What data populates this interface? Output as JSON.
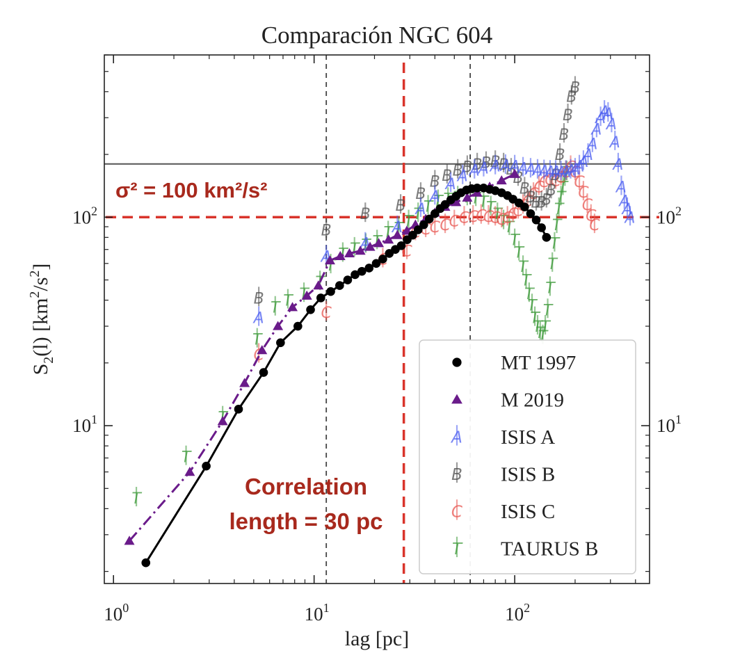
{
  "chart_data": {
    "type": "scatter",
    "title": "Comparación NGC 604",
    "xlabel": "lag [pc]",
    "ylabel_parts": [
      "S",
      "2",
      "(l) [km",
      "2",
      "/s",
      "2",
      "]"
    ],
    "xscale": "log",
    "yscale": "log",
    "xlim": [
      0.9,
      470
    ],
    "ylim": [
      1.75,
      600
    ],
    "x_ticks": [
      {
        "value": 1,
        "base": "10",
        "exp": "0"
      },
      {
        "value": 10,
        "base": "10",
        "exp": "1"
      },
      {
        "value": 100,
        "base": "10",
        "exp": "2"
      }
    ],
    "y_ticks": [
      {
        "value": 10,
        "base": "10",
        "exp": "1"
      },
      {
        "value": 100,
        "base": "10",
        "exp": "2"
      }
    ],
    "right_y_ticks": [
      {
        "value": 10,
        "base": "10",
        "exp": "1"
      },
      {
        "value": 100,
        "base": "10",
        "exp": "2"
      }
    ],
    "grid": false,
    "legend_position": "lower-right",
    "reference_lines": {
      "sigma_hline": {
        "y": 100,
        "label": "σ² = 100 km²/s²",
        "color": "#d9342b"
      },
      "gray_hline": {
        "y": 180,
        "color": "#555555"
      },
      "corr_vline": {
        "x": 28,
        "label_lines": [
          "Correlation",
          "length = 30 pc"
        ],
        "color": "#d9342b"
      },
      "gray_vlines": [
        11.5,
        60
      ]
    },
    "annotation_color": "#a8291d",
    "series": [
      {
        "name": "MT 1997",
        "color": "#000000",
        "marker": "circle",
        "line": "solid",
        "points": [
          [
            1.45,
            2.2
          ],
          [
            2.9,
            6.4
          ],
          [
            4.2,
            12
          ],
          [
            5.6,
            18
          ],
          [
            6.8,
            25
          ],
          [
            8.3,
            30
          ],
          [
            9.6,
            36
          ],
          [
            10.8,
            41
          ],
          [
            12.1,
            44
          ],
          [
            13.4,
            47
          ],
          [
            14.7,
            50
          ],
          [
            16.0,
            53
          ],
          [
            17.3,
            55
          ],
          [
            18.8,
            57
          ],
          [
            20.4,
            60
          ],
          [
            22.0,
            63
          ],
          [
            23.7,
            67
          ],
          [
            25.4,
            70
          ],
          [
            27.2,
            73
          ],
          [
            29.1,
            78
          ],
          [
            31,
            82
          ],
          [
            33,
            87
          ],
          [
            35.2,
            92
          ],
          [
            37.5,
            98
          ],
          [
            40,
            104
          ],
          [
            42.5,
            110
          ],
          [
            45,
            115
          ],
          [
            48,
            121
          ],
          [
            51,
            126
          ],
          [
            54,
            131
          ],
          [
            57.5,
            135
          ],
          [
            61,
            137
          ],
          [
            65,
            138
          ],
          [
            70,
            138
          ],
          [
            75,
            136
          ],
          [
            80,
            134
          ],
          [
            86,
            131
          ],
          [
            92,
            127
          ],
          [
            98,
            122
          ],
          [
            105,
            117
          ],
          [
            112,
            112
          ],
          [
            120,
            104
          ],
          [
            128,
            97
          ],
          [
            136,
            89
          ],
          [
            144,
            80
          ]
        ]
      },
      {
        "name": "M 2019",
        "color": "#6a1b8a",
        "marker": "triangle",
        "line": "dashdot",
        "points": [
          [
            1.2,
            2.8
          ],
          [
            2.4,
            6.0
          ],
          [
            3.5,
            10.5
          ],
          [
            4.5,
            16
          ],
          [
            5.5,
            23
          ],
          [
            6.6,
            30
          ],
          [
            7.8,
            37
          ],
          [
            9.2,
            42
          ],
          [
            10.5,
            47
          ],
          [
            12.0,
            62
          ],
          [
            13.5,
            65
          ],
          [
            15.0,
            67
          ],
          [
            17.0,
            69
          ],
          [
            19.0,
            72
          ],
          [
            21.0,
            75
          ],
          [
            23.5,
            78
          ],
          [
            26.0,
            82
          ],
          [
            29.0,
            86
          ],
          [
            32.0,
            92
          ],
          [
            36.0,
            98
          ],
          [
            40.0,
            105
          ],
          [
            45.0,
            112
          ],
          [
            51.0,
            118
          ],
          [
            58.0,
            124
          ],
          [
            65.0,
            131
          ],
          [
            75.0,
            140
          ],
          [
            86.0,
            150
          ],
          [
            100.0,
            161
          ]
        ]
      },
      {
        "name": "ISIS A",
        "color": "#4a5cf0",
        "marker": "letter",
        "letter": "A",
        "points": [
          [
            5.3,
            33
          ],
          [
            11.5,
            65
          ],
          [
            18,
            75
          ],
          [
            26,
            90
          ],
          [
            34,
            110
          ],
          [
            40,
            126
          ],
          [
            48,
            145
          ],
          [
            55,
            158
          ],
          [
            63,
            168
          ],
          [
            70,
            172
          ],
          [
            80,
            176
          ],
          [
            90,
            177
          ],
          [
            100,
            176
          ],
          [
            110,
            172
          ],
          [
            120,
            170
          ],
          [
            130,
            168
          ],
          [
            140,
            167
          ],
          [
            150,
            166
          ],
          [
            160,
            166
          ],
          [
            170,
            165
          ],
          [
            180,
            166
          ],
          [
            190,
            168
          ],
          [
            200,
            170
          ],
          [
            210,
            176
          ],
          [
            220,
            185
          ],
          [
            232,
            200
          ],
          [
            244,
            225
          ],
          [
            256,
            265
          ],
          [
            268,
            300
          ],
          [
            280,
            322
          ],
          [
            292,
            315
          ],
          [
            304,
            280
          ],
          [
            316,
            230
          ],
          [
            328,
            180
          ],
          [
            340,
            140
          ],
          [
            352,
            120
          ],
          [
            364,
            110
          ],
          [
            376,
            100
          ]
        ]
      },
      {
        "name": "ISIS B",
        "color": "#4d4d4d",
        "marker": "letter",
        "letter": "B",
        "points": [
          [
            5.3,
            41
          ],
          [
            11.5,
            87
          ],
          [
            18,
            104
          ],
          [
            27,
            114
          ],
          [
            34,
            130
          ],
          [
            40,
            149
          ],
          [
            46,
            159
          ],
          [
            52,
            168
          ],
          [
            58,
            175
          ],
          [
            65,
            180
          ],
          [
            72,
            183
          ],
          [
            80,
            185
          ],
          [
            88,
            180
          ],
          [
            96,
            170
          ],
          [
            104,
            155
          ],
          [
            112,
            138
          ],
          [
            120,
            125
          ],
          [
            128,
            118
          ],
          [
            136,
            118
          ],
          [
            144,
            122
          ],
          [
            152,
            135
          ],
          [
            160,
            160
          ],
          [
            168,
            200
          ],
          [
            176,
            250
          ],
          [
            184,
            310
          ],
          [
            192,
            380
          ],
          [
            200,
            420
          ]
        ]
      },
      {
        "name": "ISIS C",
        "color": "#e85550",
        "marker": "letter",
        "letter": "C",
        "points": [
          [
            5.3,
            22
          ],
          [
            11.5,
            35
          ],
          [
            22,
            63
          ],
          [
            29,
            69
          ],
          [
            32,
            85
          ],
          [
            36,
            88
          ],
          [
            40,
            90
          ],
          [
            45,
            92
          ],
          [
            50,
            96
          ],
          [
            56,
            100
          ],
          [
            62,
            101
          ],
          [
            68,
            102
          ],
          [
            74,
            101
          ],
          [
            80,
            100
          ],
          [
            86,
            98
          ],
          [
            92,
            100
          ],
          [
            98,
            104
          ],
          [
            104,
            108
          ],
          [
            110,
            114
          ],
          [
            116,
            120
          ],
          [
            124,
            130
          ],
          [
            132,
            140
          ],
          [
            140,
            148
          ],
          [
            150,
            152
          ],
          [
            160,
            150
          ],
          [
            170,
            156
          ],
          [
            180,
            165
          ],
          [
            190,
            175
          ],
          [
            200,
            165
          ],
          [
            210,
            148
          ],
          [
            220,
            132
          ],
          [
            230,
            115
          ],
          [
            240,
            102
          ],
          [
            250,
            92
          ]
        ]
      },
      {
        "name": "TAURUS B",
        "color": "#3e9a3a",
        "marker": "letter",
        "letter": "T",
        "points": [
          [
            1.3,
            4.5
          ],
          [
            2.3,
            7.1
          ],
          [
            3.5,
            11
          ],
          [
            5.2,
            26
          ],
          [
            6.4,
            37
          ],
          [
            7.4,
            40
          ],
          [
            8.9,
            43
          ],
          [
            10.7,
            49
          ],
          [
            12.1,
            59
          ],
          [
            13.9,
            67
          ],
          [
            15.9,
            71
          ],
          [
            18.1,
            74
          ],
          [
            20.6,
            77
          ],
          [
            23.4,
            85
          ],
          [
            26.4,
            89
          ],
          [
            29.6,
            96
          ],
          [
            33,
            104
          ],
          [
            37,
            113
          ],
          [
            41.5,
            120
          ],
          [
            46.5,
            123
          ],
          [
            52,
            125
          ],
          [
            58,
            125
          ],
          [
            64,
            124
          ],
          [
            70,
            119
          ],
          [
            76,
            112
          ],
          [
            82,
            104
          ],
          [
            88,
            96
          ],
          [
            94,
            90
          ],
          [
            100,
            78
          ],
          [
            105,
            68
          ],
          [
            110,
            58
          ],
          [
            114,
            50
          ],
          [
            118,
            43
          ],
          [
            122,
            38
          ],
          [
            126,
            33
          ],
          [
            130,
            30
          ],
          [
            134,
            28
          ],
          [
            138,
            27
          ],
          [
            142,
            30
          ],
          [
            146,
            36
          ],
          [
            150,
            46
          ],
          [
            154,
            60
          ],
          [
            158,
            75
          ],
          [
            162,
            92
          ],
          [
            166,
            110
          ],
          [
            170,
            125
          ],
          [
            174,
            140
          ],
          [
            178,
            155
          ],
          [
            182,
            165
          ]
        ]
      }
    ]
  }
}
